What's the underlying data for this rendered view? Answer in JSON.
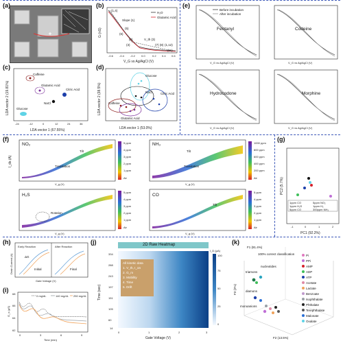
{
  "panel_labels": {
    "a": "(a)",
    "b": "(b)",
    "c": "(c)",
    "d": "(d)",
    "e": "(e)",
    "f": "(f)",
    "g": "(g)",
    "h": "(h)",
    "i": "(i)",
    "j": "(j)",
    "k": "(k)"
  },
  "b": {
    "ylabel": "G (nS)",
    "xlabel": "V_G vs Ag/AgCl (V)",
    "xticks": [
      "-0.6",
      "-0.4",
      "-0.2",
      "0.0",
      "0.2",
      "0.4",
      "0.6"
    ],
    "yticks": [
      "1",
      "2",
      "3",
      "4",
      "5"
    ],
    "legend": [
      "H₂O",
      "Glutamic Acid"
    ],
    "annotations": [
      "(1,4)",
      "Slope (1)",
      "(5)",
      "(6)",
      "(2)",
      "(3)",
      "V_th (3)",
      "(7) (8)",
      "(1,12)",
      "(11)"
    ]
  },
  "c": {
    "xlabel": "LDA vector 1 (67.55%)",
    "ylabel": "LDA vector 2 (19.81%)",
    "xticks": [
      "-24",
      "-12",
      "0",
      "12",
      "24",
      "36"
    ],
    "labels": [
      "Caffeine",
      "Glutamic Acid",
      "Citric Acid",
      "NaCl",
      "Glucose"
    ]
  },
  "d": {
    "xlabel": "LDA vector 1 (53.0%)",
    "ylabel": "LDA vector 2 (38.5%)",
    "labels": [
      "Glucose",
      "NaCl",
      "Citric Acid",
      "Caffeine",
      "Glutamic Acid"
    ]
  },
  "e": {
    "legend": [
      "Before incubation",
      "After incubation"
    ],
    "titles": [
      "Fentanyl",
      "Codeine",
      "Hydrocodone",
      "Morphine"
    ],
    "xlabel": "V_G vs Ag/AgCl (V)",
    "ylabel": "I_ds (A)",
    "xticks": [
      "-0.5",
      "0.0",
      "0.5"
    ]
  },
  "f": {
    "titles": [
      "NO₂",
      "NH₃",
      "H₂S",
      "CO"
    ],
    "xlabel": "V_g (V)",
    "ylabel": "I_ds (A)",
    "xticks": [
      "-60",
      "-40",
      "-20",
      "0",
      "20",
      "40",
      "60",
      "80",
      "100"
    ],
    "annotations": {
      "no2": [
        "Tilt",
        "Translation"
      ],
      "nh3": [
        "Tilt",
        "Translation"
      ],
      "h2s": [
        "Rotation"
      ],
      "co": [
        "Tilt"
      ]
    },
    "cbar_no2": [
      "5 ppm",
      "4 ppm",
      "3 ppm",
      "2 ppm",
      "1 ppm",
      "Air"
    ],
    "cbar_nh3": [
      "1000 ppm",
      "800 ppm",
      "600 ppm",
      "400 ppm",
      "200 ppm",
      "Air"
    ],
    "cbar_h2s": [
      "5 ppm",
      "4 ppm",
      "3 ppm",
      "2 ppm",
      "1 ppm",
      "Air"
    ],
    "cbar_co": [
      "5 ppm",
      "4 ppm",
      "3 ppm",
      "2 ppm",
      "1 ppm",
      "Air"
    ]
  },
  "g": {
    "xlabel": "PC1 (92.2%)",
    "ylabel": "PC2 (5.7%)",
    "xticks": [
      "-1",
      "0",
      "1",
      "2"
    ],
    "legend": [
      "1ppm CO",
      "1ppm H₂S",
      "5ppm CO",
      "5ppm NO₂",
      "1ppm H₂",
      "300ppm NH₃"
    ]
  },
  "h": {
    "titles": [
      "Early Reaction",
      "After Reaction"
    ],
    "ylabel": "Drain Current (A)",
    "xlabel": "Gate Voltage (V)",
    "annotations": [
      "ΔG",
      "Initial",
      "Final"
    ]
  },
  "i": {
    "ylabel": "G_s (μS)",
    "xlabel": "Time (min)",
    "legend": [
      "0 mg/dL",
      "140 mg/dL",
      "250 mg/dL"
    ],
    "xticks": [
      "0",
      "3",
      "6",
      "9"
    ],
    "yticks": [
      "62",
      "64",
      "66",
      "68"
    ]
  },
  "j": {
    "title": "2D Raw Heatmap",
    "ylabel": "Time (sec)",
    "xlabel": "Gate Voltage (V)",
    "yticks": [
      "14",
      "60",
      "105",
      "151",
      "197",
      "243",
      "288",
      "334"
    ],
    "xticks": [
      "0",
      "1",
      "2",
      "3"
    ],
    "colorbar_label": "I_D (μA)",
    "colorbar_ticks": [
      "0",
      "25",
      "50",
      "75",
      "100"
    ],
    "box_lines": [
      "All kinetic data",
      "1. V_th, I_on",
      "2. G_m",
      "3. Mobility",
      "4. Time",
      "5. Drift"
    ]
  },
  "k": {
    "axes": [
      "F1 (81.4%)",
      "F2 (13.5%)",
      "F3 (2%)"
    ],
    "annotations": [
      "100% correct classification",
      "triamons",
      "nucleotides",
      "diamons",
      "monoanions"
    ],
    "legend": [
      "Pi",
      "PPi",
      "AMP",
      "ADP",
      "ATP",
      "Acetate",
      "Lactate",
      "Benzoate",
      "Isophthalate",
      "Phthalate",
      "Terephthalate",
      "Malonate",
      "Oxalate"
    ]
  }
}
